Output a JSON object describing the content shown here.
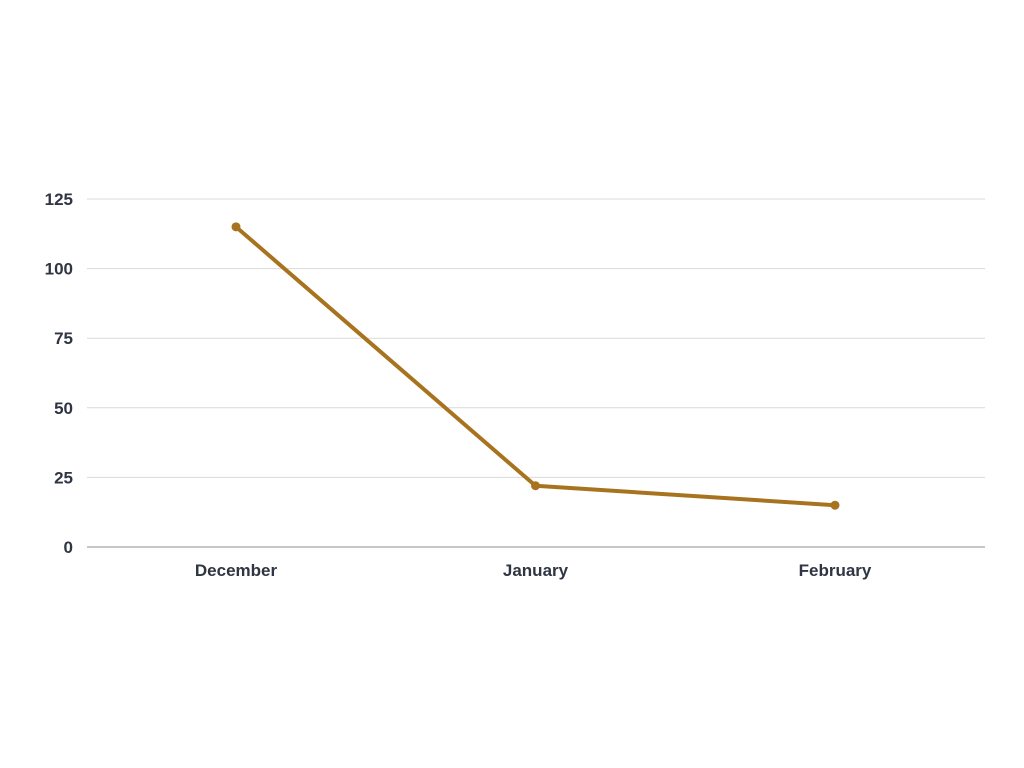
{
  "chart_data": {
    "type": "line",
    "title": "",
    "xlabel": "",
    "ylabel": "",
    "categories": [
      "December",
      "January",
      "February"
    ],
    "series": [
      {
        "values": [
          115,
          22,
          15
        ]
      }
    ],
    "ylim": [
      0,
      125
    ],
    "yticks": [
      0,
      25,
      50,
      75,
      100,
      125
    ],
    "grid": true,
    "legend": "none",
    "colors": {
      "series": "#a8731f",
      "grid": "#d9d9d9",
      "axis": "#b3b3b3",
      "text": "#2f3542",
      "background": "#ffffff"
    }
  }
}
